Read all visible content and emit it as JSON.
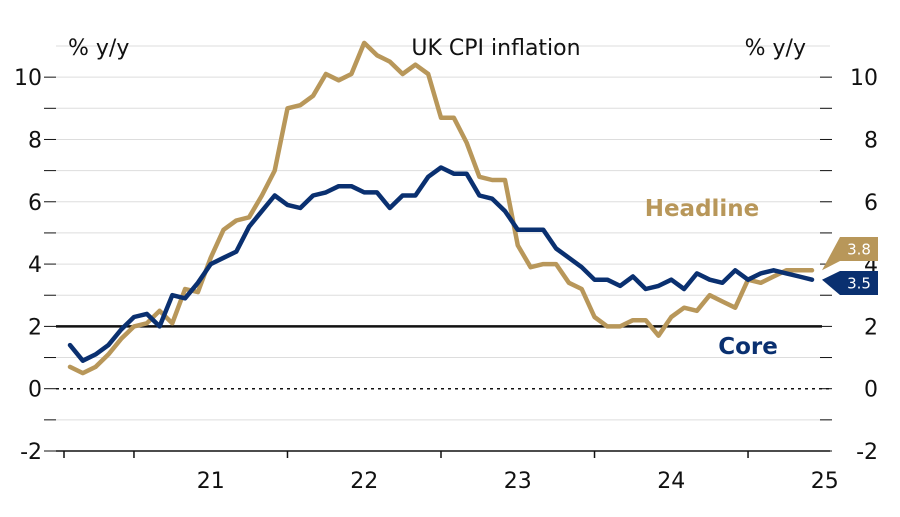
{
  "chart_data": {
    "type": "line",
    "title": "UK CPI inflation",
    "left_unit": "% y/y",
    "right_unit": "% y/y",
    "ylim": [
      -2,
      11
    ],
    "yticks": [
      -2,
      0,
      2,
      4,
      6,
      8,
      10
    ],
    "xticks": [
      "21",
      "22",
      "23",
      "24",
      "25"
    ],
    "x_start": "2020-08",
    "x_end": "2025-08",
    "grid": true,
    "reference_lines": [
      {
        "value": 2,
        "style": "solid"
      },
      {
        "value": 0,
        "style": "dotted"
      }
    ],
    "series": [
      {
        "name": "Headline",
        "color": "#B8975A",
        "last_value_label": "3.8",
        "values": [
          0.7,
          0.5,
          0.7,
          1.1,
          1.6,
          2.0,
          2.1,
          2.5,
          2.1,
          3.2,
          3.1,
          4.2,
          5.1,
          5.4,
          5.5,
          6.2,
          7.0,
          9.0,
          9.1,
          9.4,
          10.1,
          9.9,
          10.1,
          11.1,
          10.7,
          10.5,
          10.1,
          10.4,
          10.1,
          8.7,
          8.7,
          7.9,
          6.8,
          6.7,
          6.7,
          4.6,
          3.9,
          4.0,
          4.0,
          3.4,
          3.2,
          2.3,
          2.0,
          2.0,
          2.2,
          2.2,
          1.7,
          2.3,
          2.6,
          2.5,
          3.0,
          2.8,
          2.6,
          3.5,
          3.4,
          3.6,
          3.8,
          3.8,
          3.8
        ]
      },
      {
        "name": "Core",
        "color": "#0A3070",
        "last_value_label": "3.5",
        "values": [
          1.4,
          0.9,
          1.1,
          1.4,
          1.9,
          2.3,
          2.4,
          2.0,
          3.0,
          2.9,
          3.4,
          4.0,
          4.2,
          4.4,
          5.2,
          5.7,
          6.2,
          5.9,
          5.8,
          6.2,
          6.3,
          6.5,
          6.5,
          6.3,
          6.3,
          5.8,
          6.2,
          6.2,
          6.8,
          7.1,
          6.9,
          6.9,
          6.2,
          6.1,
          5.7,
          5.1,
          5.1,
          5.1,
          4.5,
          4.2,
          3.9,
          3.5,
          3.5,
          3.3,
          3.6,
          3.2,
          3.3,
          3.5,
          3.2,
          3.7,
          3.5,
          3.4,
          3.8,
          3.5,
          3.7,
          3.8,
          3.7,
          3.6,
          3.5
        ]
      }
    ]
  }
}
